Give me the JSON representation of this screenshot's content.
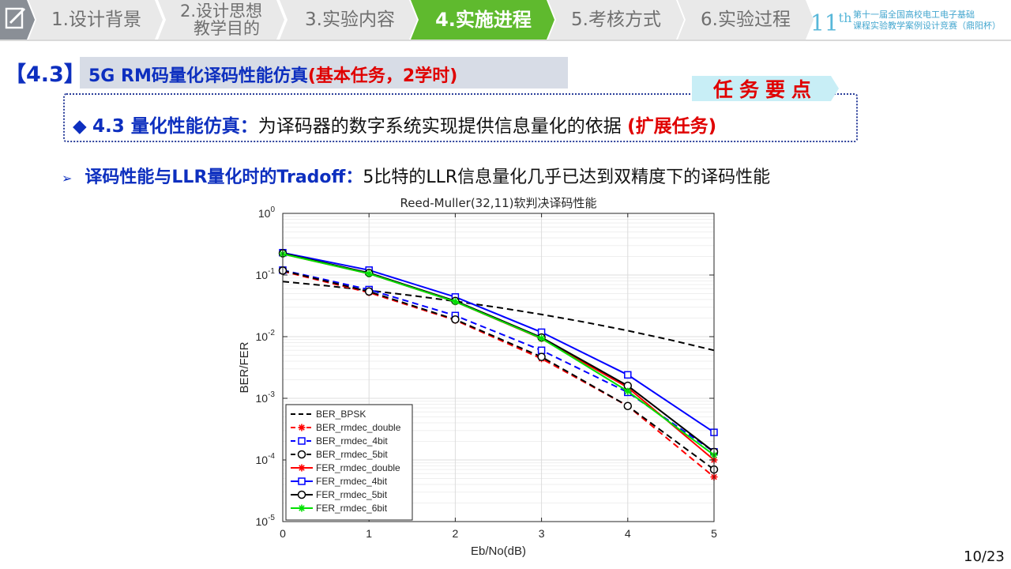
{
  "nav": {
    "tabs": [
      {
        "label": "1.设计背景",
        "active": false
      },
      {
        "label_lines": [
          "2.设计思想",
          "教学目的"
        ],
        "active": false
      },
      {
        "label": "3.实验内容",
        "active": false
      },
      {
        "label": "4.实施进程",
        "active": true
      },
      {
        "label": "5.考核方式",
        "active": false
      },
      {
        "label": "6.实验过程",
        "active": false
      }
    ],
    "edition": "11",
    "edition_suffix": "th",
    "competition_line1": "第十一届全国高校电工电子基础",
    "competition_line2": "课程实验教学案例设计竞赛（鼎阳杯）"
  },
  "section": {
    "number": "【4.3】",
    "title": "5G RM码量化译码性能仿真",
    "title_note": "(基本任务，2学时)"
  },
  "key_points": {
    "tag": "任务要点",
    "bullet": "◆",
    "heading": "4.3 量化性能仿真：",
    "text": "为译码器的数字系统实现提供信息量化的依据",
    "note": "(扩展任务)"
  },
  "sub_bullet": {
    "arrow": "➢",
    "heading": "译码性能与LLR量化时的Tradoff：",
    "text": "5比特的LLR信息量化几乎已达到双精度下的译码性能"
  },
  "page": "10/23",
  "colors": {
    "blue": "#0d2fbf",
    "red": "#e00000",
    "nav_active": "#5fba2e",
    "nav_inactive": "#e9e9e9"
  },
  "chart_data": {
    "type": "line",
    "title": "Reed-Muller(32,11)软判决译码性能",
    "xlabel": "Eb/No(dB)",
    "ylabel": "BER/FER",
    "x": [
      0,
      1,
      2,
      3,
      4,
      5
    ],
    "xlim": [
      0,
      5
    ],
    "ylim": [
      1e-05,
      1
    ],
    "yscale": "log",
    "xticks": [
      "0",
      "1",
      "2",
      "3",
      "4",
      "5"
    ],
    "yticks": [
      {
        "base": "10",
        "exp": "0"
      },
      {
        "base": "10",
        "exp": "-1"
      },
      {
        "base": "10",
        "exp": "-2"
      },
      {
        "base": "10",
        "exp": "-3"
      },
      {
        "base": "10",
        "exp": "-4"
      },
      {
        "base": "10",
        "exp": "-5"
      }
    ],
    "grid": true,
    "legend_position": "bottom-left",
    "series": [
      {
        "name": "BER_BPSK",
        "color": "#000000",
        "dash": true,
        "marker": "none",
        "x": [
          0,
          0.5,
          1,
          1.5,
          2,
          2.5,
          3,
          3.5,
          4,
          4.5,
          5
        ],
        "values": [
          0.0786,
          0.0671,
          0.0563,
          0.0464,
          0.0375,
          0.0297,
          0.0229,
          0.0172,
          0.0125,
          0.0088,
          0.006
        ]
      },
      {
        "name": "BER_rmdec_double",
        "color": "#ff0000",
        "dash": true,
        "marker": "star",
        "values": [
          0.115,
          0.052,
          0.0185,
          0.0044,
          0.00075,
          5.3e-05
        ]
      },
      {
        "name": "BER_rmdec_4bit",
        "color": "#0000ff",
        "dash": true,
        "marker": "square",
        "values": [
          0.12,
          0.058,
          0.022,
          0.006,
          0.00125,
          0.000135
        ]
      },
      {
        "name": "BER_rmdec_5bit",
        "color": "#000000",
        "dash": true,
        "marker": "circle",
        "values": [
          0.118,
          0.054,
          0.019,
          0.0047,
          0.00075,
          7e-05
        ]
      },
      {
        "name": "FER_rmdec_double",
        "color": "#ff0000",
        "dash": false,
        "marker": "star",
        "values": [
          0.22,
          0.105,
          0.037,
          0.0093,
          0.0015,
          0.0001
        ]
      },
      {
        "name": "FER_rmdec_4bit",
        "color": "#0000ff",
        "dash": false,
        "marker": "square",
        "values": [
          0.23,
          0.12,
          0.044,
          0.0118,
          0.0024,
          0.00028
        ]
      },
      {
        "name": "FER_rmdec_5bit",
        "color": "#000000",
        "dash": false,
        "marker": "circle",
        "values": [
          0.225,
          0.108,
          0.038,
          0.0097,
          0.0016,
          0.000135
        ]
      },
      {
        "name": "FER_rmdec_6bit",
        "color": "#00e000",
        "dash": false,
        "marker": "star",
        "values": [
          0.22,
          0.105,
          0.037,
          0.0094,
          0.0013,
          0.00012
        ]
      }
    ]
  }
}
